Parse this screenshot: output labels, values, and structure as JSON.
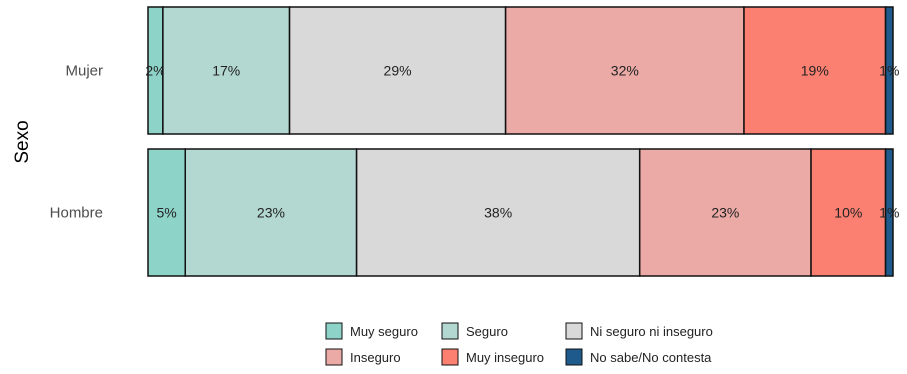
{
  "chart_data": {
    "type": "bar",
    "orientation": "horizontal",
    "stacked": "percent",
    "title": "",
    "xlabel": "",
    "ylabel": "Sexo",
    "categories": [
      "Mujer",
      "Hombre"
    ],
    "series": [
      {
        "name": "Muy seguro",
        "color": "#8dd3c7",
        "values": [
          2,
          5
        ],
        "labels": [
          "2%",
          "5%"
        ]
      },
      {
        "name": "Seguro",
        "color": "#b3d8d2",
        "values": [
          17,
          23
        ],
        "labels": [
          "17%",
          "23%"
        ]
      },
      {
        "name": "Ni seguro ni inseguro",
        "color": "#d9d9d9",
        "values": [
          29,
          38
        ],
        "labels": [
          "29%",
          "38%"
        ]
      },
      {
        "name": "Inseguro",
        "color": "#ebaaa6",
        "values": [
          32,
          23
        ],
        "labels": [
          "32%",
          "23%"
        ]
      },
      {
        "name": "Muy inseguro",
        "color": "#fb8072",
        "values": [
          19,
          10
        ],
        "labels": [
          "19%",
          "10%"
        ]
      },
      {
        "name": "No sabe/No contesta",
        "color": "#1f5a8c",
        "values": [
          1,
          1
        ],
        "labels": [
          "1%",
          "1%"
        ]
      }
    ],
    "grid": false,
    "legend_position": "bottom"
  }
}
